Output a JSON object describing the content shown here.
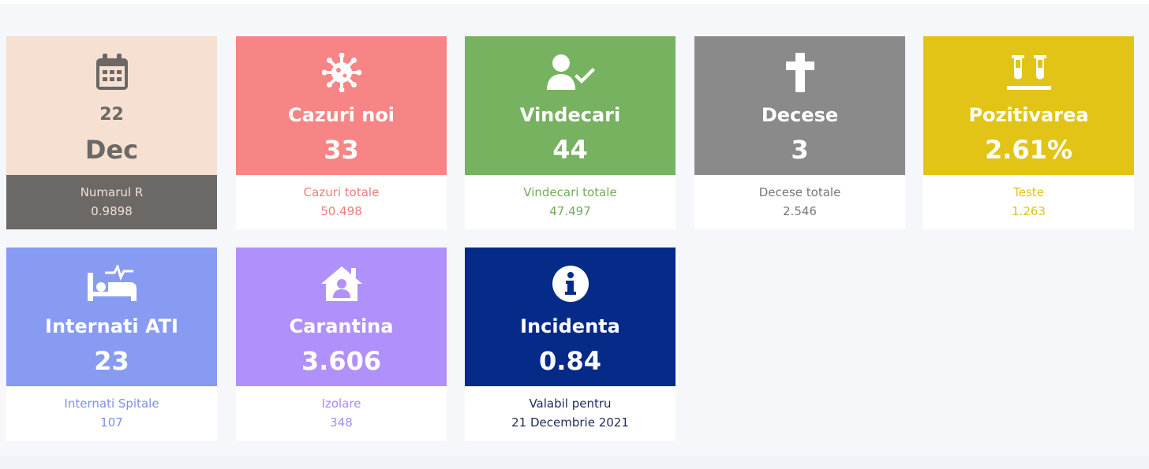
{
  "cards": [
    {
      "title": "22",
      "value": "Dec",
      "sub_label": "Numarul R",
      "sub_value": "0.9898",
      "icon": "calendar-icon",
      "top_color": "#f5e0d1",
      "text_color": "#6b6866",
      "bottom_bg": "#6b6866",
      "bottom_text_color": "#f5e0d1"
    },
    {
      "title": "Cazuri noi",
      "value": "33",
      "sub_label": "Cazuri totale",
      "sub_value": "50.498",
      "icon": "virus-icon",
      "top_color": "#f78585",
      "text_color": "#ffffff",
      "bottom_bg": "#ffffff",
      "bottom_text_color": "#f07b7b"
    },
    {
      "title": "Vindecari",
      "value": "44",
      "sub_label": "Vindecari totale",
      "sub_value": "47.497",
      "icon": "user-check-icon",
      "top_color": "#76b25f",
      "text_color": "#ffffff",
      "bottom_bg": "#ffffff",
      "bottom_text_color": "#6eac57"
    },
    {
      "title": "Decese",
      "value": "3",
      "sub_label": "Decese totale",
      "sub_value": "2.546",
      "icon": "cross-icon",
      "top_color": "#8a8a8a",
      "text_color": "#ffffff",
      "bottom_bg": "#ffffff",
      "bottom_text_color": "#777777"
    },
    {
      "title": "Pozitivarea",
      "value": "2.61%",
      "sub_label": "Teste",
      "sub_value": "1.263",
      "icon": "test-tubes-icon",
      "top_color": "#e2c417",
      "text_color": "#ffffff",
      "bottom_bg": "#ffffff",
      "bottom_text_color": "#e0c117"
    },
    {
      "title": "Internati ATI",
      "value": "23",
      "sub_label": "Internati Spitale",
      "sub_value": "107",
      "icon": "hospital-bed-icon",
      "top_color": "#879bf3",
      "text_color": "#ffffff",
      "bottom_bg": "#ffffff",
      "bottom_text_color": "#7c90e8"
    },
    {
      "title": "Carantina",
      "value": "3.606",
      "sub_label": "Izolare",
      "sub_value": "348",
      "icon": "house-user-icon",
      "top_color": "#b091fb",
      "text_color": "#ffffff",
      "bottom_bg": "#ffffff",
      "bottom_text_color": "#a78af0"
    },
    {
      "title": "Incidenta",
      "value": "0.84",
      "sub_label": "Valabil pentru",
      "sub_value": "21 Decembrie 2021",
      "icon": "info-icon",
      "top_color": "#062a87",
      "text_color": "#ffffff",
      "bottom_bg": "#ffffff",
      "bottom_text_color": "#1f2a5a"
    }
  ]
}
